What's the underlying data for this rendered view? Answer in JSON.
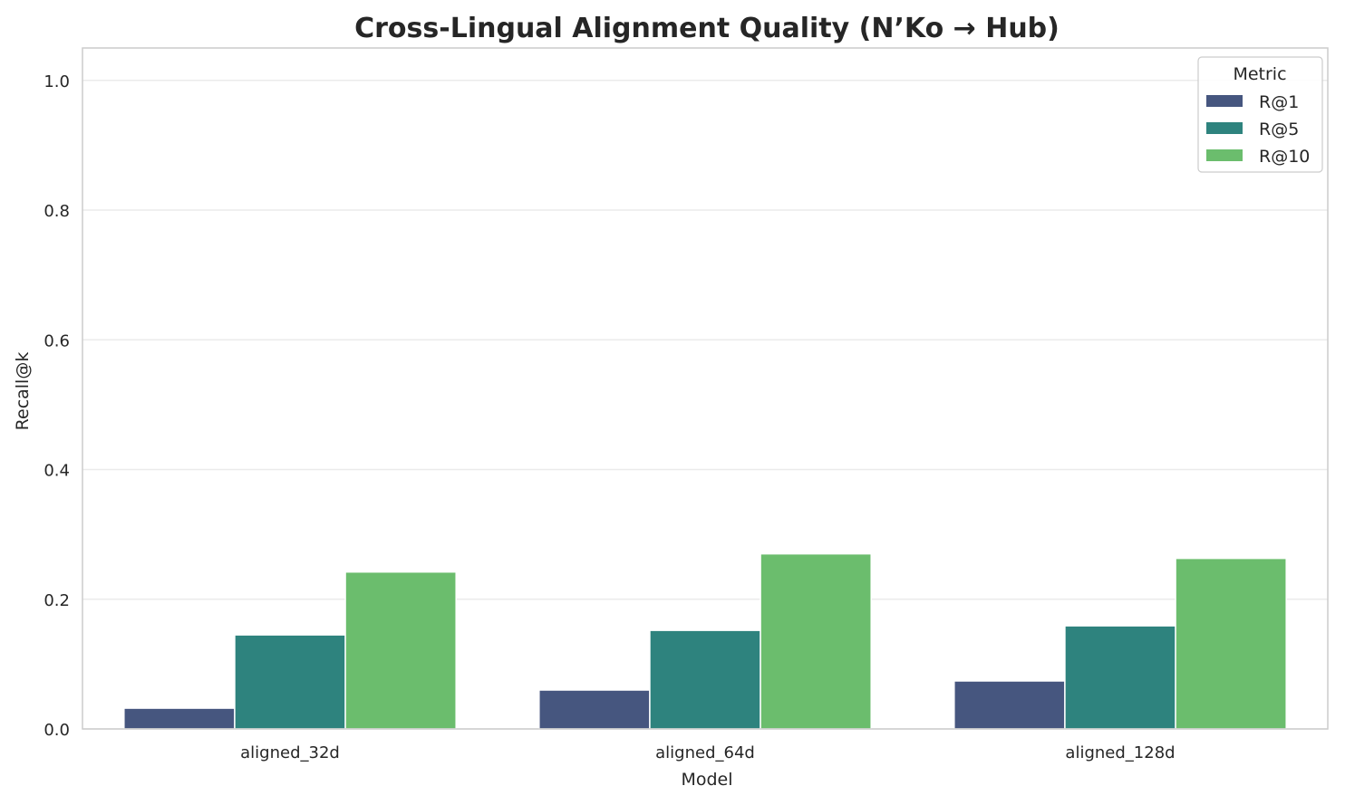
{
  "chart_data": {
    "type": "bar",
    "title": "Cross-Lingual Alignment Quality (N’Ko → Hub)",
    "xlabel": "Model",
    "ylabel": "Recall@k",
    "categories": [
      "aligned_32d",
      "aligned_64d",
      "aligned_128d"
    ],
    "series": [
      {
        "name": "R@1",
        "color": "#46567f",
        "values": [
          0.032,
          0.06,
          0.074
        ]
      },
      {
        "name": "R@5",
        "color": "#2e837e",
        "values": [
          0.145,
          0.152,
          0.159
        ]
      },
      {
        "name": "R@10",
        "color": "#6bbd6d",
        "values": [
          0.242,
          0.27,
          0.263
        ]
      }
    ],
    "ylim": [
      0,
      1.05
    ],
    "yticks": [
      "0.0",
      "0.2",
      "0.4",
      "0.6",
      "0.8",
      "1.0"
    ],
    "grid": true,
    "legend": {
      "title": "Metric",
      "placement": "top-right"
    }
  }
}
